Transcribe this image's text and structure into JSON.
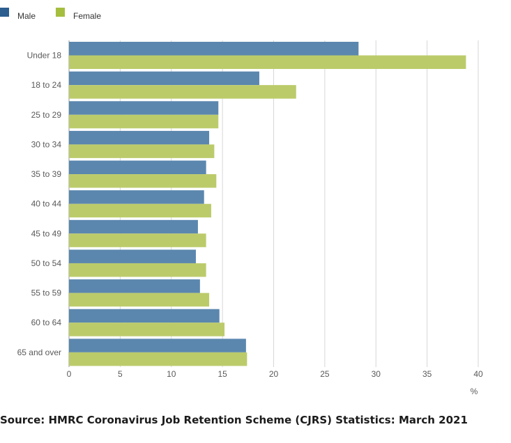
{
  "chart_data": {
    "type": "bar",
    "orientation": "horizontal",
    "categories": [
      "Under 18",
      "18 to 24",
      "25 to 29",
      "30 to 34",
      "35 to 39",
      "40 to 44",
      "45 to 49",
      "50 to 54",
      "55 to 59",
      "60 to 64",
      "65 and over"
    ],
    "series": [
      {
        "name": "Male",
        "color": "#5b87ae",
        "values": [
          28.3,
          18.6,
          14.6,
          13.7,
          13.4,
          13.2,
          12.6,
          12.4,
          12.8,
          14.7,
          17.3
        ]
      },
      {
        "name": "Female",
        "color": "#bccb6a",
        "values": [
          38.8,
          22.2,
          14.6,
          14.2,
          14.4,
          13.9,
          13.4,
          13.4,
          13.7,
          15.2,
          17.4
        ]
      }
    ],
    "xlim": [
      0,
      40
    ],
    "xticks": [
      0,
      5,
      10,
      15,
      20,
      25,
      30,
      35,
      40
    ],
    "xlabel": "%",
    "ylabel": "",
    "grid": true,
    "legend": {
      "position": "top-left",
      "entries": [
        {
          "name": "Male",
          "color": "#2c5e90"
        },
        {
          "name": "Female",
          "color": "#a5be3f"
        }
      ]
    }
  },
  "source": "Source: HMRC Coronavirus Job Retention Scheme (CJRS) Statistics: March 2021"
}
